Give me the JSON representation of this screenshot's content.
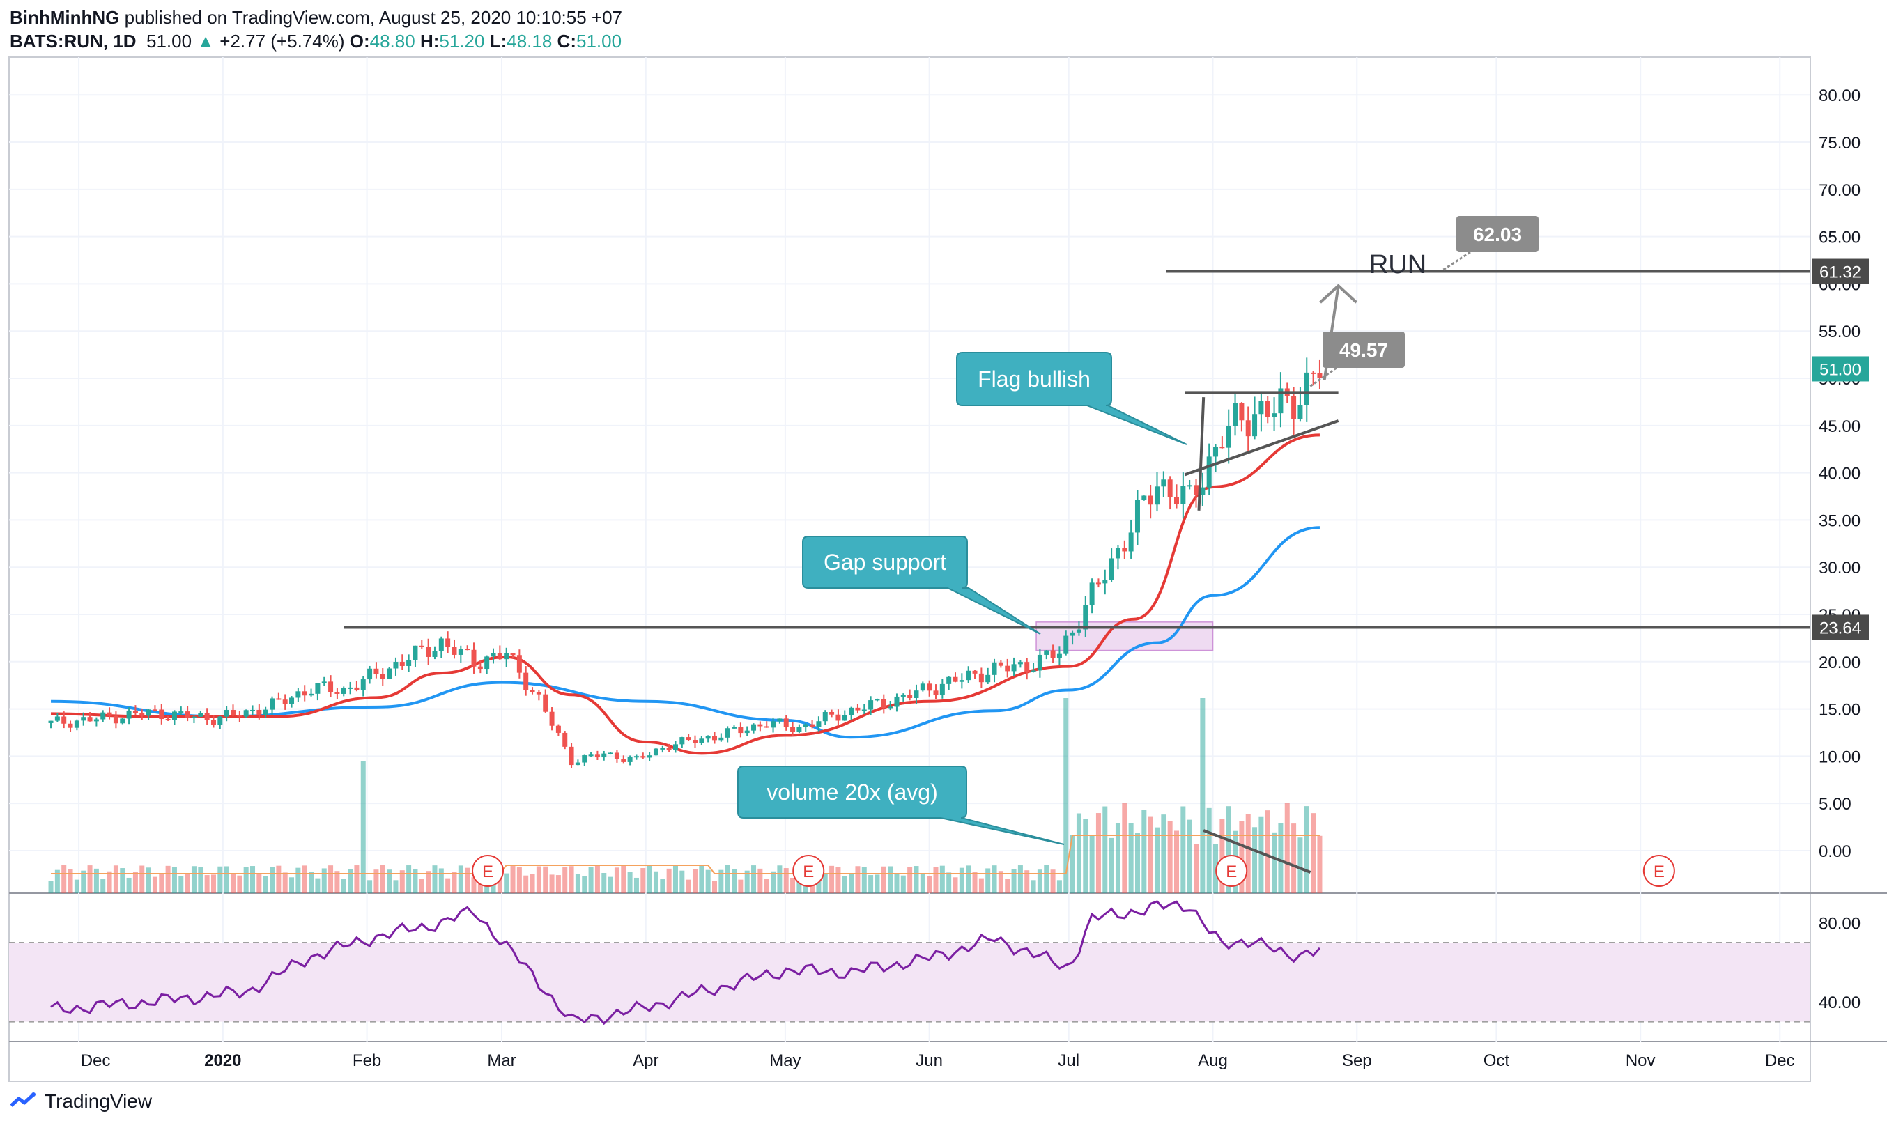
{
  "header": {
    "author": "BinhMinhNG",
    "published_text": "published on TradingView.com, August 25, 2020 10:10:55 +07",
    "symbol": "BATS:RUN, 1D",
    "last": "51.00",
    "arrow": "▲",
    "change": "+2.77 (+5.74%)",
    "o_label": "O:",
    "o": "48.80",
    "h_label": "H:",
    "h": "51.20",
    "l_label": "L:",
    "l": "48.18",
    "c_label": "C:",
    "c": "51.00"
  },
  "footer": {
    "brand": "TradingView"
  },
  "colors": {
    "up": "#26a69a",
    "down": "#ef5350",
    "ma_fast": "#e53935",
    "ma_slow": "#2196f3",
    "rsi": "#7b1fa2",
    "rsi_band": "#f3e5f5",
    "callout": "#3fb0c0",
    "price_tag_dark": "#4a4a4a",
    "price_tag_current": "#26a69a",
    "label_gray": "#8c8c8c",
    "gap_zone": "#e1bee7"
  },
  "chart_data": {
    "type": "candlestick",
    "price_axis": {
      "ticks": [
        0,
        5,
        10,
        15,
        20,
        25,
        30,
        35,
        40,
        45,
        50,
        55,
        60,
        65,
        70,
        75,
        80
      ],
      "tick_labels": [
        "0.00",
        "5.00",
        "10.00",
        "15.00",
        "20.00",
        "25.00",
        "30.00",
        "35.00",
        "40.00",
        "45.00",
        "50.00",
        "55.00",
        "60.00",
        "65.00",
        "70.00",
        "75.00",
        "80.00"
      ],
      "range": [
        -4.5,
        84
      ]
    },
    "rsi_axis": {
      "ticks": [
        40,
        80
      ],
      "tick_labels": [
        "40.00",
        "80.00"
      ],
      "band": [
        30,
        70
      ],
      "range": [
        20,
        95
      ]
    },
    "time_axis": {
      "labels": [
        "Dec",
        "2020",
        "Feb",
        "Mar",
        "Apr",
        "May",
        "Jun",
        "Jul",
        "Aug",
        "Sep",
        "Oct",
        "Nov",
        "Dec"
      ],
      "bold": [
        "2020"
      ]
    },
    "price_series": [
      [
        "2019-11-25",
        13.5
      ],
      [
        "2019-12-02",
        13.8
      ],
      [
        "2019-12-09",
        14.2
      ],
      [
        "2019-12-16",
        14.6
      ],
      [
        "2019-12-23",
        14.3
      ],
      [
        "2019-12-30",
        14.0
      ],
      [
        "2020-01-06",
        14.6
      ],
      [
        "2020-01-13",
        15.6
      ],
      [
        "2020-01-20",
        17.2
      ],
      [
        "2020-01-27",
        17.0
      ],
      [
        "2020-02-03",
        18.6
      ],
      [
        "2020-02-10",
        20.4
      ],
      [
        "2020-02-17",
        22.0
      ],
      [
        "2020-02-24",
        20.0
      ],
      [
        "2020-03-02",
        20.8
      ],
      [
        "2020-03-09",
        16.0
      ],
      [
        "2020-03-16",
        9.5
      ],
      [
        "2020-03-23",
        10.2
      ],
      [
        "2020-03-30",
        9.6
      ],
      [
        "2020-04-06",
        11.2
      ],
      [
        "2020-04-13",
        11.8
      ],
      [
        "2020-04-20",
        12.6
      ],
      [
        "2020-04-27",
        13.5
      ],
      [
        "2020-05-04",
        13.0
      ],
      [
        "2020-05-11",
        14.2
      ],
      [
        "2020-05-18",
        15.2
      ],
      [
        "2020-05-25",
        16.0
      ],
      [
        "2020-06-01",
        17.2
      ],
      [
        "2020-06-08",
        18.2
      ],
      [
        "2020-06-15",
        19.2
      ],
      [
        "2020-06-22",
        19.6
      ],
      [
        "2020-06-29",
        21.0
      ],
      [
        "2020-07-06",
        27.0
      ],
      [
        "2020-07-13",
        33.0
      ],
      [
        "2020-07-20",
        39.0
      ],
      [
        "2020-07-27",
        37.0
      ],
      [
        "2020-08-03",
        44.0
      ],
      [
        "2020-08-10",
        46.5
      ],
      [
        "2020-08-17",
        47.0
      ],
      [
        "2020-08-24",
        51.0
      ]
    ],
    "ma_fast": [
      [
        "2019-11-25",
        14.5
      ],
      [
        "2019-12-16",
        14.2
      ],
      [
        "2020-01-13",
        14.2
      ],
      [
        "2020-02-03",
        16.2
      ],
      [
        "2020-02-17",
        18.8
      ],
      [
        "2020-03-02",
        20.5
      ],
      [
        "2020-03-16",
        16.5
      ],
      [
        "2020-04-01",
        11.5
      ],
      [
        "2020-04-13",
        10.3
      ],
      [
        "2020-05-01",
        12.2
      ],
      [
        "2020-06-01",
        15.8
      ],
      [
        "2020-07-01",
        19.5
      ],
      [
        "2020-07-15",
        24.5
      ],
      [
        "2020-08-01",
        38.5
      ],
      [
        "2020-08-24",
        44.0
      ]
    ],
    "ma_slow": [
      [
        "2019-11-25",
        15.8
      ],
      [
        "2020-01-01",
        14.2
      ],
      [
        "2020-02-03",
        15.2
      ],
      [
        "2020-03-01",
        17.8
      ],
      [
        "2020-04-01",
        15.8
      ],
      [
        "2020-05-01",
        13.8
      ],
      [
        "2020-05-15",
        12.0
      ],
      [
        "2020-06-15",
        14.8
      ],
      [
        "2020-07-01",
        17.0
      ],
      [
        "2020-07-20",
        22.0
      ],
      [
        "2020-08-01",
        27.0
      ],
      [
        "2020-08-24",
        34.2
      ]
    ],
    "volume_spikes": [
      [
        "2020-01-31",
        "high"
      ],
      [
        "2020-06-30",
        "high"
      ],
      [
        "2020-07-30",
        "high"
      ]
    ],
    "rsi_series": [
      [
        "2019-11-25",
        36
      ],
      [
        "2019-12-16",
        40
      ],
      [
        "2020-01-06",
        45
      ],
      [
        "2020-01-20",
        63
      ],
      [
        "2020-02-03",
        73
      ],
      [
        "2020-02-17",
        80
      ],
      [
        "2020-02-24",
        86
      ],
      [
        "2020-03-09",
        50
      ],
      [
        "2020-03-16",
        30
      ],
      [
        "2020-03-30",
        36
      ],
      [
        "2020-04-13",
        45
      ],
      [
        "2020-05-01",
        56
      ],
      [
        "2020-05-15",
        55
      ],
      [
        "2020-06-01",
        62
      ],
      [
        "2020-06-15",
        72
      ],
      [
        "2020-07-01",
        57
      ],
      [
        "2020-07-06",
        82
      ],
      [
        "2020-07-20",
        88
      ],
      [
        "2020-07-27",
        89
      ],
      [
        "2020-08-03",
        68
      ],
      [
        "2020-08-10",
        72
      ],
      [
        "2020-08-17",
        62
      ],
      [
        "2020-08-24",
        68
      ]
    ],
    "horizontal_levels": [
      {
        "value": 23.64,
        "label": "23.64"
      },
      {
        "value": 61.32,
        "label": "61.32"
      }
    ],
    "current_price_tag": "51.00",
    "earnings_markers": [
      "E",
      "E",
      "E",
      "E"
    ],
    "annotations": {
      "flag_callout": "Flag bullish",
      "gap_callout": "Gap support",
      "volume_callout": "volume 20x (avg)",
      "target_label": "RUN",
      "target_price": "62.03",
      "breakout_price": "49.57"
    }
  }
}
